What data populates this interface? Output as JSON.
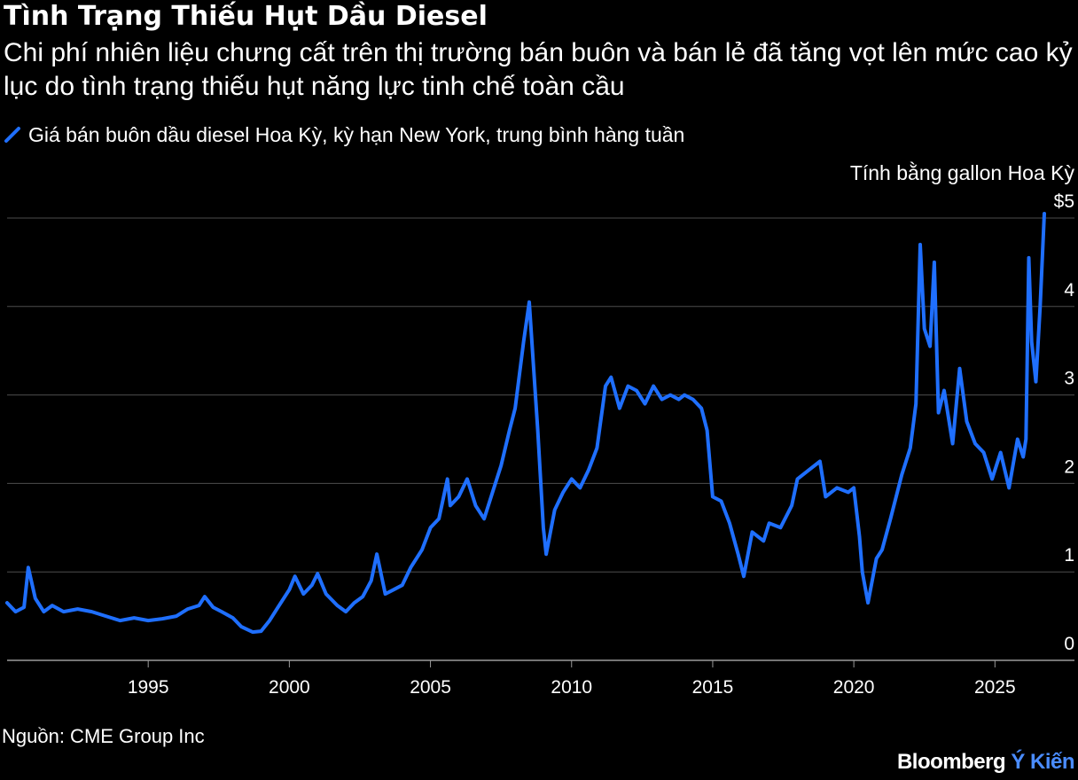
{
  "header": {
    "title": "Tình Trạng Thiếu Hụt Dầu Diesel",
    "subtitle": "Chi phí nhiên liệu chưng cất trên thị trường bán buôn và bán lẻ đã tăng vọt lên mức cao kỷ lục do tình trạng thiếu hụt năng lực tinh chế toàn cầu",
    "legend_label": "Giá bán buôn dầu diesel Hoa Kỳ, kỳ hạn New York, trung bình hàng tuần",
    "unit_label": "Tính bằng gallon Hoa Kỳ"
  },
  "footer": {
    "source": "Nguồn: CME Group Inc",
    "brand_name": "Bloomberg",
    "brand_accent": "Ý Kiến"
  },
  "colors": {
    "background": "#000000",
    "line": "#1f6fff",
    "grid": "#4d4d4d",
    "text": "#ffffff",
    "brand_accent": "#4a8cff"
  },
  "chart_data": {
    "type": "line",
    "title": "Tình Trạng Thiếu Hụt Dầu Diesel",
    "ylabel": "Tính bằng gallon Hoa Kỳ",
    "xlim": [
      1990.0,
      2027.0
    ],
    "ylim": [
      0,
      5
    ],
    "y_ticks": [
      0,
      1,
      2,
      3,
      4,
      5
    ],
    "y_tick_labels": [
      "0",
      "1",
      "2",
      "3",
      "4",
      "$5"
    ],
    "x_ticks": [
      1995,
      2000,
      2005,
      2010,
      2015,
      2020,
      2025
    ],
    "x_tick_labels": [
      "1995",
      "2000",
      "2005",
      "2010",
      "2015",
      "2020",
      "2025"
    ],
    "grid": "horizontal",
    "legend_position": "top-left",
    "series": [
      {
        "name": "Giá bán buôn dầu diesel Hoa Kỳ, kỳ hạn New York, trung bình hàng tuần",
        "x": [
          1990.0,
          1990.3,
          1990.6,
          1990.75,
          1991.0,
          1991.3,
          1991.6,
          1992.0,
          1992.5,
          1993.0,
          1993.5,
          1994.0,
          1994.5,
          1995.0,
          1995.5,
          1996.0,
          1996.4,
          1996.8,
          1997.0,
          1997.3,
          1997.6,
          1998.0,
          1998.3,
          1998.7,
          1999.0,
          1999.3,
          1999.6,
          2000.0,
          2000.2,
          2000.5,
          2000.8,
          2001.0,
          2001.3,
          2001.7,
          2002.0,
          2002.3,
          2002.6,
          2002.9,
          2003.1,
          2003.4,
          2003.7,
          2004.0,
          2004.3,
          2004.7,
          2005.0,
          2005.3,
          2005.6,
          2005.7,
          2006.0,
          2006.3,
          2006.6,
          2006.9,
          2007.2,
          2007.5,
          2007.8,
          2008.0,
          2008.3,
          2008.5,
          2008.8,
          2009.0,
          2009.1,
          2009.4,
          2009.7,
          2010.0,
          2010.3,
          2010.6,
          2010.9,
          2011.2,
          2011.4,
          2011.7,
          2012.0,
          2012.3,
          2012.6,
          2012.9,
          2013.2,
          2013.5,
          2013.8,
          2014.0,
          2014.3,
          2014.6,
          2014.8,
          2015.0,
          2015.3,
          2015.6,
          2015.9,
          2016.1,
          2016.4,
          2016.8,
          2017.0,
          2017.4,
          2017.8,
          2018.0,
          2018.4,
          2018.8,
          2019.0,
          2019.4,
          2019.8,
          2020.0,
          2020.2,
          2020.3,
          2020.5,
          2020.8,
          2021.0,
          2021.3,
          2021.7,
          2022.0,
          2022.2,
          2022.35,
          2022.5,
          2022.7,
          2022.85,
          2023.0,
          2023.2,
          2023.5,
          2023.75,
          2024.0,
          2024.3,
          2024.6,
          2024.9,
          2025.2,
          2025.5,
          2025.8,
          2026.0,
          2026.1,
          2026.2,
          2026.3,
          2026.45,
          2026.6,
          2026.75
        ],
        "values": [
          0.65,
          0.55,
          0.6,
          1.05,
          0.7,
          0.55,
          0.62,
          0.55,
          0.58,
          0.55,
          0.5,
          0.45,
          0.48,
          0.45,
          0.47,
          0.5,
          0.58,
          0.62,
          0.72,
          0.6,
          0.55,
          0.48,
          0.38,
          0.32,
          0.33,
          0.45,
          0.6,
          0.8,
          0.95,
          0.75,
          0.85,
          0.98,
          0.75,
          0.62,
          0.55,
          0.65,
          0.72,
          0.9,
          1.2,
          0.75,
          0.8,
          0.85,
          1.05,
          1.25,
          1.5,
          1.6,
          2.05,
          1.75,
          1.85,
          2.05,
          1.75,
          1.6,
          1.9,
          2.2,
          2.6,
          2.85,
          3.6,
          4.05,
          2.6,
          1.5,
          1.2,
          1.7,
          1.9,
          2.05,
          1.95,
          2.15,
          2.4,
          3.1,
          3.2,
          2.85,
          3.1,
          3.05,
          2.9,
          3.1,
          2.95,
          3.0,
          2.95,
          3.0,
          2.95,
          2.85,
          2.6,
          1.85,
          1.8,
          1.55,
          1.2,
          0.95,
          1.45,
          1.35,
          1.55,
          1.5,
          1.75,
          2.05,
          2.15,
          2.25,
          1.85,
          1.95,
          1.9,
          1.95,
          1.4,
          1.0,
          0.65,
          1.15,
          1.25,
          1.6,
          2.1,
          2.4,
          2.9,
          4.7,
          3.75,
          3.55,
          4.5,
          2.8,
          3.05,
          2.45,
          3.3,
          2.7,
          2.45,
          2.35,
          2.05,
          2.35,
          1.95,
          2.5,
          2.3,
          2.5,
          4.55,
          3.6,
          3.15,
          4.0,
          5.05
        ]
      }
    ]
  }
}
